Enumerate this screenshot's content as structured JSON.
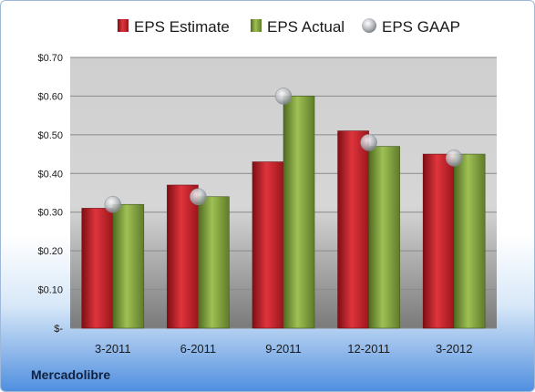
{
  "chart_data": {
    "type": "bar",
    "categories": [
      "3-2011",
      "6-2011",
      "9-2011",
      "12-2011",
      "3-2012"
    ],
    "series": [
      {
        "name": "EPS Estimate",
        "values": [
          0.31,
          0.37,
          0.43,
          0.51,
          0.45
        ],
        "color": "#c0202a"
      },
      {
        "name": "EPS Actual",
        "values": [
          0.32,
          0.34,
          0.6,
          0.47,
          0.45
        ],
        "color": "#7a9a3a"
      },
      {
        "name": "EPS GAAP",
        "values": [
          0.32,
          0.34,
          0.6,
          0.48,
          0.44
        ],
        "color": "#b9bdc2",
        "kind": "marker"
      }
    ],
    "yticks": [
      "$-",
      "$0.10",
      "$0.20",
      "$0.30",
      "$0.40",
      "$0.50",
      "$0.60",
      "$0.70"
    ],
    "ylim": [
      0,
      0.7
    ],
    "legend_position": "top",
    "grid": true
  },
  "footer": {
    "company": "Mercadolibre"
  }
}
